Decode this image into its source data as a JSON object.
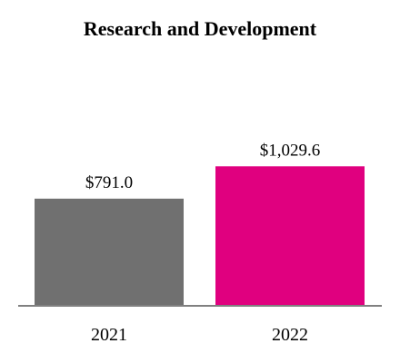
{
  "chart_data": {
    "type": "bar",
    "title": "Research and Development",
    "xlabel": "",
    "ylabel": "",
    "categories": [
      "2021",
      "2022"
    ],
    "values": [
      791.0,
      1029.6
    ],
    "value_labels": [
      "$791.0",
      "$1,029.6"
    ],
    "colors": [
      "#707070",
      "#e0007f"
    ],
    "axis_color": "#808080",
    "ylim": [
      0,
      1200
    ],
    "grid": false,
    "legend": "none"
  }
}
